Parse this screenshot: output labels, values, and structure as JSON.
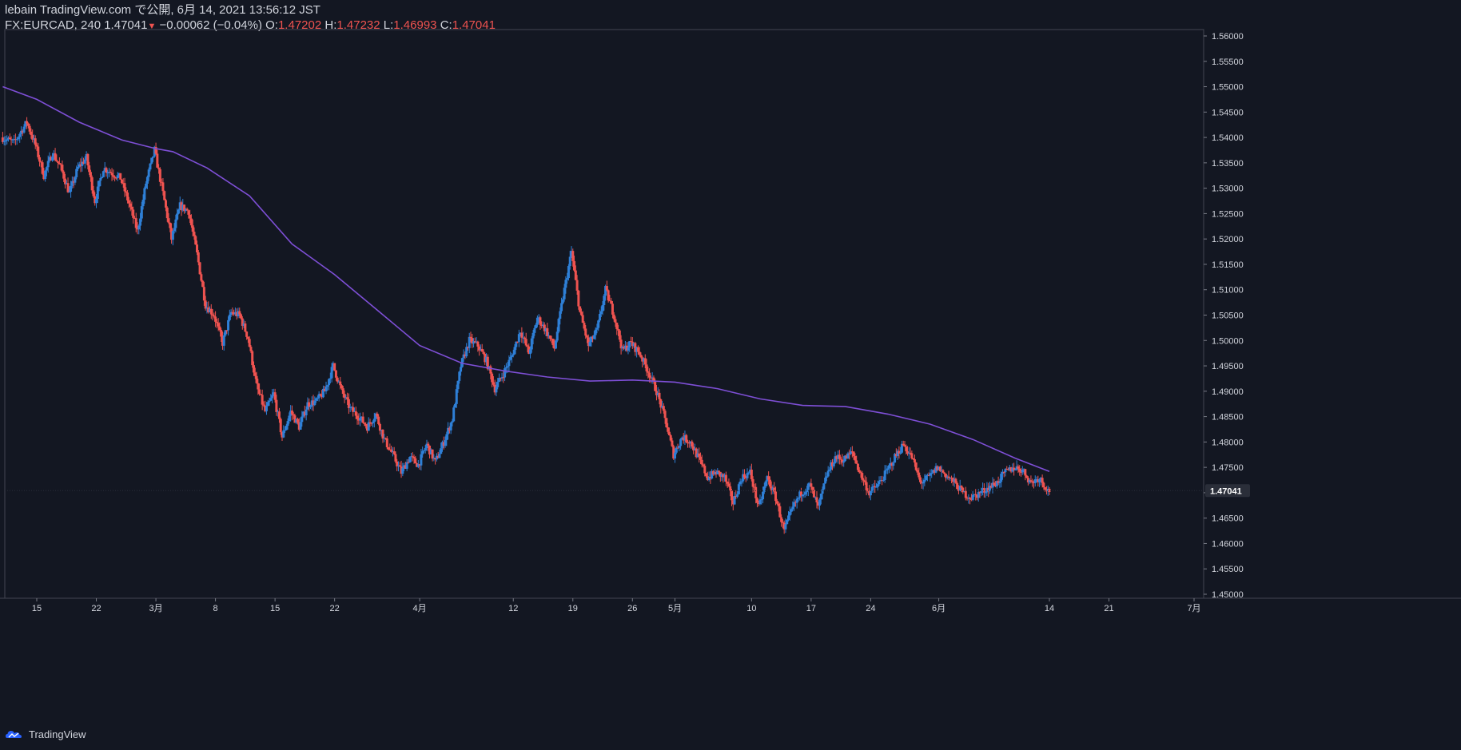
{
  "header": {
    "line1": "lebain TradingView.com で公開, 6月 14, 2021 13:56:12 JST",
    "symbol": "FX:EURCAD, 240",
    "last": "1.47041",
    "change": "−0.00062 (−0.04%)",
    "o_label": "O:",
    "o_value": "1.47202",
    "h_label": "H:",
    "h_value": "1.47232",
    "l_label": "L:",
    "l_value": "1.46993",
    "c_label": "C:",
    "c_value": "1.47041"
  },
  "footer": {
    "brand": "TradingView"
  },
  "colors": {
    "background": "#131722",
    "up": "#2e7fd6",
    "down": "#ef5350",
    "ma": "#7e4fd6",
    "text": "#d1d4dc"
  },
  "chart_data": {
    "type": "line",
    "title": "",
    "xlabel": "",
    "ylabel": "",
    "ylim": [
      1.448,
      1.561
    ],
    "grid": false,
    "y_ticks": [
      "1.45000",
      "1.45500",
      "1.46000",
      "1.46500",
      "1.47000",
      "1.47500",
      "1.48000",
      "1.48500",
      "1.49000",
      "1.49500",
      "1.50000",
      "1.50500",
      "1.51000",
      "1.51500",
      "1.52000",
      "1.52500",
      "1.53000",
      "1.53500",
      "1.54000",
      "1.54500",
      "1.55000",
      "1.55500",
      "1.56000"
    ],
    "x_ticks": [
      {
        "label": "15",
        "day": 0
      },
      {
        "label": "22",
        "day": 7
      },
      {
        "label": "3月",
        "day": 14
      },
      {
        "label": "8",
        "day": 21
      },
      {
        "label": "15",
        "day": 28
      },
      {
        "label": "22",
        "day": 35
      },
      {
        "label": "4月",
        "day": 45
      },
      {
        "label": "12",
        "day": 56
      },
      {
        "label": "19",
        "day": 63
      },
      {
        "label": "26",
        "day": 70
      },
      {
        "label": "5月",
        "day": 75
      },
      {
        "label": "10",
        "day": 84
      },
      {
        "label": "17",
        "day": 91
      },
      {
        "label": "24",
        "day": 98
      },
      {
        "label": "6月",
        "day": 106
      },
      {
        "label": "14",
        "day": 119
      },
      {
        "label": "21",
        "day": 126
      },
      {
        "label": "7月",
        "day": 136
      }
    ],
    "last_price_label": "1.47041",
    "series": [
      {
        "name": "",
        "kind": "price",
        "points": [
          [
            -4,
            1.54
          ],
          [
            -2.5,
            1.539
          ],
          [
            -1,
            1.543
          ],
          [
            0,
            1.5385
          ],
          [
            1,
            1.5325
          ],
          [
            2,
            1.537
          ],
          [
            3,
            1.534
          ],
          [
            4,
            1.529
          ],
          [
            5,
            1.534
          ],
          [
            6,
            1.536
          ],
          [
            7,
            1.5275
          ],
          [
            8,
            1.534
          ],
          [
            10,
            1.532
          ],
          [
            11,
            1.527
          ],
          [
            12,
            1.5215
          ],
          [
            13,
            1.531
          ],
          [
            14,
            1.5375
          ],
          [
            15,
            1.529
          ],
          [
            16,
            1.52
          ],
          [
            17,
            1.5265
          ],
          [
            18,
            1.5255
          ],
          [
            19,
            1.517
          ],
          [
            20,
            1.507
          ],
          [
            21,
            1.505
          ],
          [
            22,
            1.4995
          ],
          [
            23,
            1.5055
          ],
          [
            24,
            1.505
          ],
          [
            25,
            1.5005
          ],
          [
            26,
            1.491
          ],
          [
            27,
            1.486
          ],
          [
            28,
            1.4895
          ],
          [
            29,
            1.481
          ],
          [
            30,
            1.486
          ],
          [
            31,
            1.483
          ],
          [
            32,
            1.4875
          ],
          [
            33,
            1.488
          ],
          [
            34,
            1.49
          ],
          [
            35,
            1.495
          ],
          [
            36,
            1.49
          ],
          [
            37,
            1.4865
          ],
          [
            38,
            1.485
          ],
          [
            39,
            1.483
          ],
          [
            40,
            1.4855
          ],
          [
            41,
            1.4805
          ],
          [
            42,
            1.4775
          ],
          [
            43,
            1.474
          ],
          [
            44,
            1.477
          ],
          [
            45,
            1.4755
          ],
          [
            46,
            1.4795
          ],
          [
            47,
            1.476
          ],
          [
            48,
            1.48
          ],
          [
            49,
            1.4845
          ],
          [
            50,
            1.495
          ],
          [
            51,
            1.5
          ],
          [
            52,
            1.499
          ],
          [
            53,
            1.496
          ],
          [
            54,
            1.4905
          ],
          [
            55,
            1.4935
          ],
          [
            56,
            1.497
          ],
          [
            57,
            1.502
          ],
          [
            58,
            1.4975
          ],
          [
            59,
            1.5045
          ],
          [
            60,
            1.502
          ],
          [
            61,
            1.4985
          ],
          [
            62,
            1.5085
          ],
          [
            63,
            1.5175
          ],
          [
            64,
            1.5055
          ],
          [
            65,
            1.499
          ],
          [
            66,
            1.502
          ],
          [
            67,
            1.51
          ],
          [
            68,
            1.505
          ],
          [
            69,
            1.498
          ],
          [
            70,
            1.4995
          ],
          [
            71,
            1.4975
          ],
          [
            72,
            1.494
          ],
          [
            73,
            1.49
          ],
          [
            74,
            1.4845
          ],
          [
            75,
            1.4775
          ],
          [
            76,
            1.481
          ],
          [
            77,
            1.48
          ],
          [
            78,
            1.4765
          ],
          [
            79,
            1.473
          ],
          [
            80,
            1.474
          ],
          [
            81,
            1.473
          ],
          [
            82,
            1.468
          ],
          [
            83,
            1.473
          ],
          [
            84,
            1.474
          ],
          [
            85,
            1.467
          ],
          [
            86,
            1.473
          ],
          [
            87,
            1.469
          ],
          [
            88,
            1.4625
          ],
          [
            89,
            1.467
          ],
          [
            90,
            1.47
          ],
          [
            91,
            1.4715
          ],
          [
            92,
            1.467
          ],
          [
            93,
            1.4735
          ],
          [
            94,
            1.477
          ],
          [
            95,
            1.4765
          ],
          [
            96,
            1.478
          ],
          [
            97,
            1.4735
          ],
          [
            98,
            1.47
          ],
          [
            99,
            1.4715
          ],
          [
            100,
            1.474
          ],
          [
            101,
            1.477
          ],
          [
            102,
            1.4795
          ],
          [
            103,
            1.477
          ],
          [
            104,
            1.472
          ],
          [
            105,
            1.473
          ],
          [
            106,
            1.475
          ],
          [
            107,
            1.4735
          ],
          [
            108,
            1.472
          ],
          [
            109,
            1.47
          ],
          [
            110,
            1.469
          ],
          [
            111,
            1.47
          ],
          [
            112,
            1.471
          ],
          [
            113,
            1.472
          ],
          [
            114,
            1.474
          ],
          [
            115,
            1.475
          ],
          [
            116,
            1.4745
          ],
          [
            117,
            1.472
          ],
          [
            118,
            1.473
          ],
          [
            119,
            1.4704
          ]
        ]
      },
      {
        "name": "",
        "kind": "moving-average",
        "points": [
          [
            -4,
            1.55
          ],
          [
            0,
            1.5475
          ],
          [
            5,
            1.543
          ],
          [
            10,
            1.5395
          ],
          [
            14,
            1.5378
          ],
          [
            16,
            1.5372
          ],
          [
            20,
            1.534
          ],
          [
            25,
            1.5285
          ],
          [
            30,
            1.519
          ],
          [
            35,
            1.513
          ],
          [
            40,
            1.506
          ],
          [
            45,
            1.499
          ],
          [
            50,
            1.4955
          ],
          [
            55,
            1.494
          ],
          [
            60,
            1.4928
          ],
          [
            65,
            1.492
          ],
          [
            70,
            1.4922
          ],
          [
            75,
            1.4918
          ],
          [
            80,
            1.4905
          ],
          [
            85,
            1.4885
          ],
          [
            90,
            1.4872
          ],
          [
            95,
            1.487
          ],
          [
            100,
            1.4855
          ],
          [
            105,
            1.4835
          ],
          [
            110,
            1.4805
          ],
          [
            115,
            1.4768
          ],
          [
            119,
            1.4742
          ]
        ]
      }
    ]
  }
}
